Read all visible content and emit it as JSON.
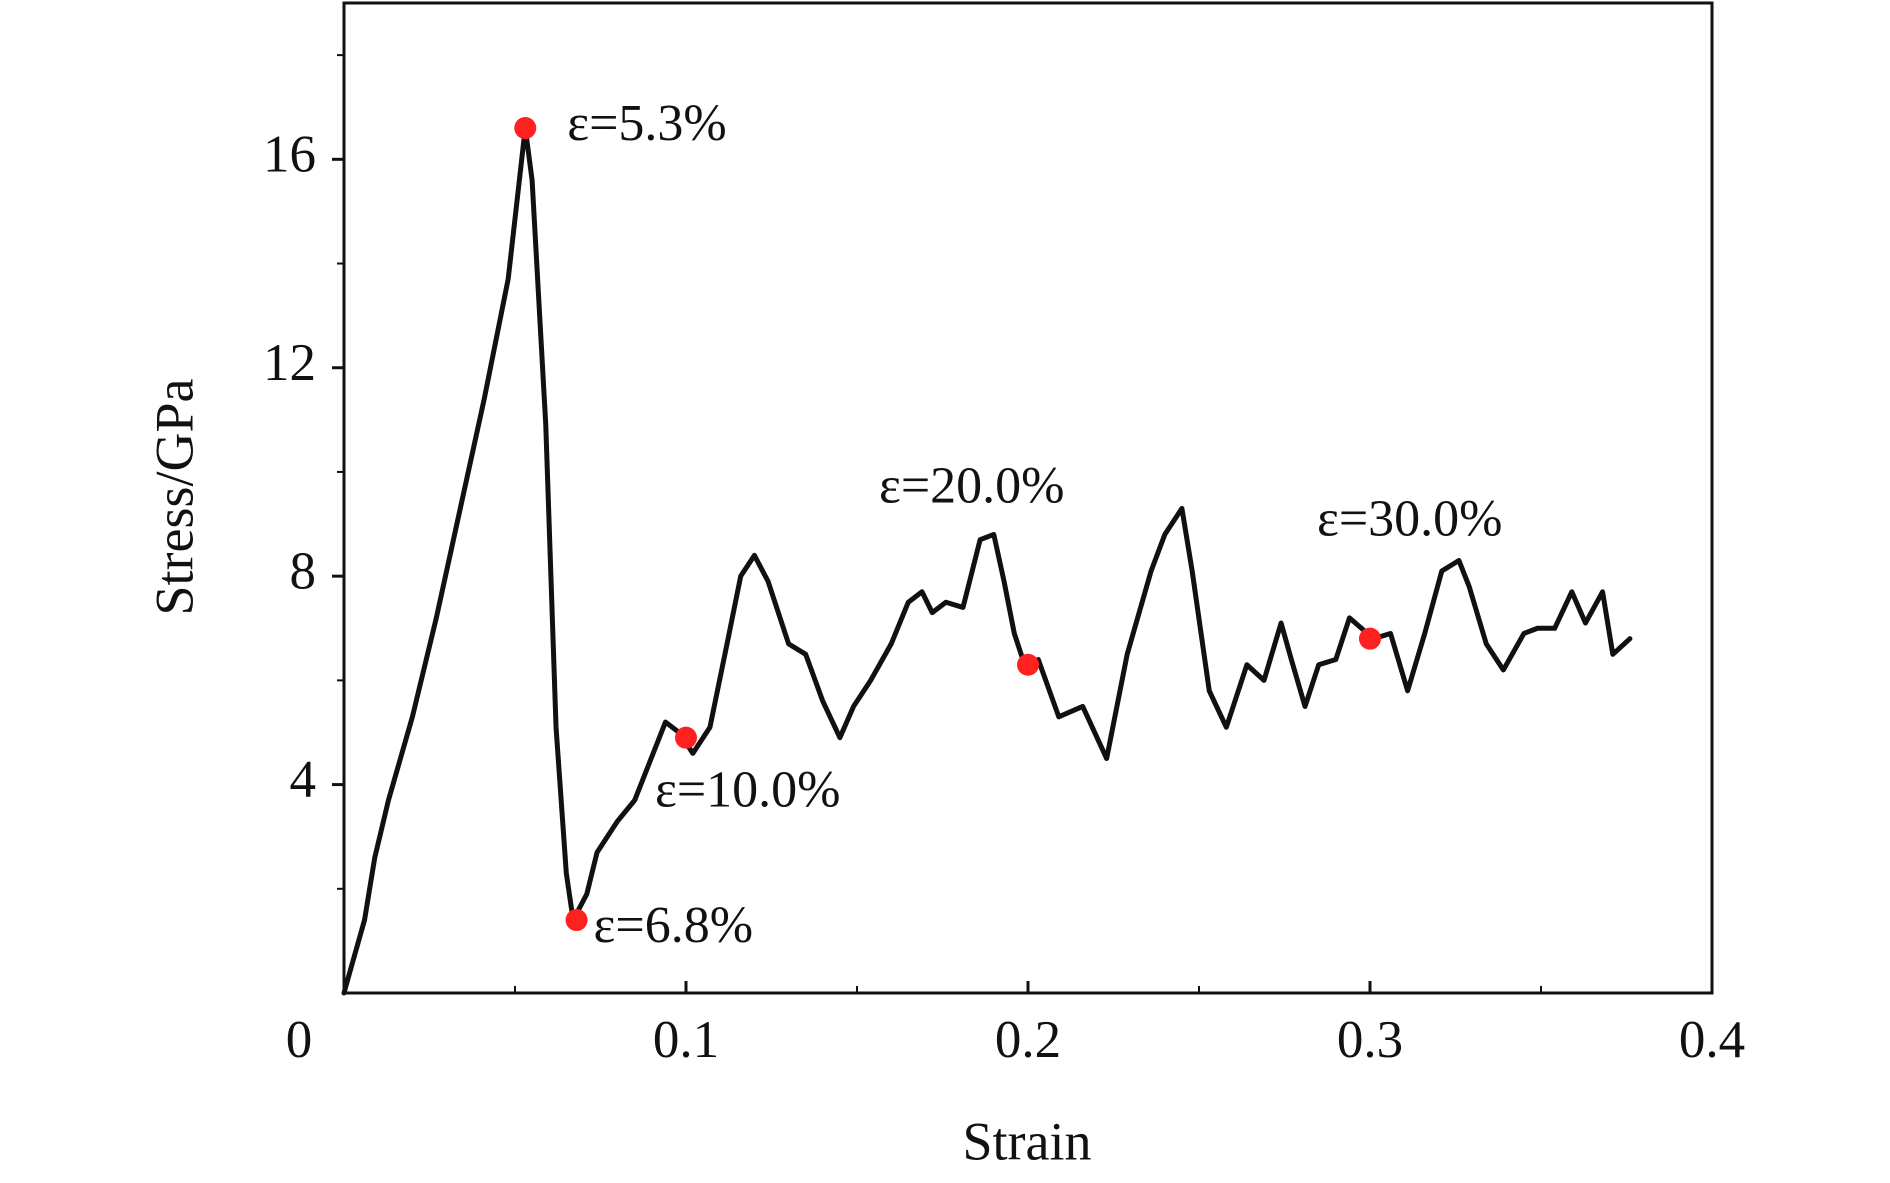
{
  "chart_data": {
    "type": "line",
    "xlabel": "Strain",
    "ylabel": "Stress/GPa",
    "x": [
      0,
      0.002,
      0.006,
      0.009,
      0.013,
      0.02,
      0.027,
      0.034,
      0.041,
      0.048,
      0.053,
      0.055,
      0.059,
      0.062,
      0.065,
      0.067,
      0.071,
      0.074,
      0.08,
      0.085,
      0.091,
      0.094,
      0.098,
      0.102,
      0.107,
      0.112,
      0.116,
      0.12,
      0.124,
      0.13,
      0.135,
      0.14,
      0.145,
      0.149,
      0.154,
      0.16,
      0.165,
      0.169,
      0.172,
      0.176,
      0.181,
      0.186,
      0.19,
      0.193,
      0.196,
      0.199,
      0.203,
      0.209,
      0.216,
      0.223,
      0.229,
      0.236,
      0.24,
      0.245,
      0.248,
      0.253,
      0.258,
      0.264,
      0.269,
      0.274,
      0.277,
      0.281,
      0.285,
      0.29,
      0.294,
      0.301,
      0.306,
      0.311,
      0.316,
      0.321,
      0.326,
      0.329,
      0.334,
      0.339,
      0.345,
      0.349,
      0.354,
      0.359,
      0.363,
      0.368,
      0.371,
      0.376
    ],
    "values": [
      0,
      0.47,
      1.4,
      2.6,
      3.7,
      5.3,
      7.2,
      9.3,
      11.4,
      13.7,
      16.6,
      15.6,
      10.9,
      5.1,
      2.3,
      1.4,
      1.9,
      2.7,
      3.3,
      3.7,
      4.7,
      5.2,
      5.0,
      4.6,
      5.1,
      6.7,
      8.0,
      8.4,
      7.9,
      6.7,
      6.5,
      5.6,
      4.9,
      5.5,
      6.0,
      6.7,
      7.5,
      7.7,
      7.3,
      7.5,
      7.4,
      8.7,
      8.8,
      7.9,
      6.9,
      6.3,
      6.4,
      5.3,
      5.5,
      4.5,
      6.5,
      8.1,
      8.8,
      9.3,
      8.1,
      5.8,
      5.1,
      6.3,
      6.0,
      7.1,
      6.4,
      5.5,
      6.3,
      6.4,
      7.2,
      6.8,
      6.9,
      5.8,
      6.9,
      8.1,
      8.3,
      7.8,
      6.7,
      6.2,
      6.9,
      7.0,
      7.0,
      7.7,
      7.1,
      7.7,
      6.5,
      6.8
    ],
    "color": "#111111",
    "markers": {
      "x": [
        0.053,
        0.068,
        0.1,
        0.2,
        0.3
      ],
      "values": [
        16.6,
        1.4,
        4.9,
        6.3,
        6.8
      ],
      "color": "#ff2020"
    },
    "annotations": [
      "ε=5.3%",
      "ε=6.8%",
      "ε=10.0%",
      "ε=20.0%",
      "ε=30.0%"
    ],
    "xlim": [
      0,
      0.4
    ],
    "ylim": [
      0,
      19
    ],
    "xticks": [
      0,
      0.1,
      0.2,
      0.3,
      0.4
    ],
    "yticks": [
      4,
      8,
      12,
      16
    ],
    "xminorticks": [
      0.05,
      0.15,
      0.25,
      0.35
    ],
    "yminorticks": [
      2,
      6,
      10,
      14,
      18
    ],
    "grid": false
  }
}
